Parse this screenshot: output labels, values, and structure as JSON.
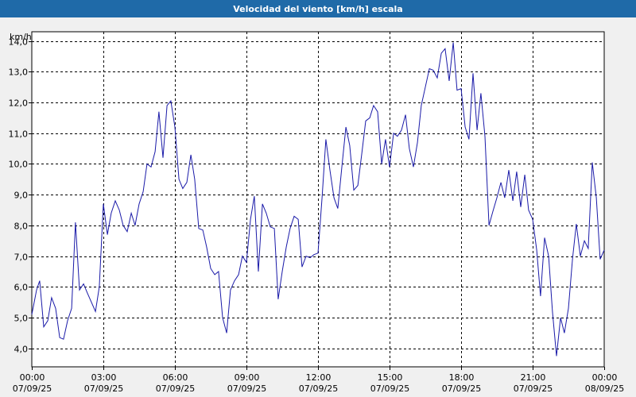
{
  "chart_data": {
    "type": "line",
    "title": "Velocidad del viento [km/h] escala",
    "ylabel": "km/h",
    "ylim": [
      3.4,
      14.3
    ],
    "yticks": [
      "4,0",
      "5,0",
      "6,0",
      "7,0",
      "8,0",
      "9,0",
      "10,0",
      "11,0",
      "12,0",
      "13,0",
      "14,0"
    ],
    "yticks_values": [
      4,
      5,
      6,
      7,
      8,
      9,
      10,
      11,
      12,
      13,
      14
    ],
    "xticks": [
      {
        "time": "00:00",
        "date": "07/09/25",
        "hour": 0
      },
      {
        "time": "03:00",
        "date": "07/09/25",
        "hour": 3
      },
      {
        "time": "06:00",
        "date": "07/09/25",
        "hour": 6
      },
      {
        "time": "09:00",
        "date": "07/09/25",
        "hour": 9
      },
      {
        "time": "12:00",
        "date": "07/09/25",
        "hour": 12
      },
      {
        "time": "15:00",
        "date": "07/09/25",
        "hour": 15
      },
      {
        "time": "18:00",
        "date": "07/09/25",
        "hour": 18
      },
      {
        "time": "21:00",
        "date": "07/09/25",
        "hour": 21
      },
      {
        "time": "00:00",
        "date": "08/09/25",
        "hour": 24
      }
    ],
    "xlim": [
      0,
      24
    ],
    "grid": true,
    "line_color": "#1a1aa8",
    "series": [
      {
        "name": "",
        "points": [
          [
            0.0,
            5.1
          ],
          [
            0.2,
            5.9
          ],
          [
            0.33,
            6.2
          ],
          [
            0.5,
            4.7
          ],
          [
            0.67,
            4.9
          ],
          [
            0.83,
            5.65
          ],
          [
            1.0,
            5.3
          ],
          [
            1.17,
            4.35
          ],
          [
            1.33,
            4.3
          ],
          [
            1.5,
            4.9
          ],
          [
            1.67,
            5.3
          ],
          [
            1.83,
            8.1
          ],
          [
            2.0,
            5.9
          ],
          [
            2.17,
            6.1
          ],
          [
            2.33,
            5.8
          ],
          [
            2.5,
            5.5
          ],
          [
            2.67,
            5.2
          ],
          [
            2.83,
            6.0
          ],
          [
            3.0,
            8.7
          ],
          [
            3.17,
            7.7
          ],
          [
            3.33,
            8.4
          ],
          [
            3.5,
            8.8
          ],
          [
            3.67,
            8.5
          ],
          [
            3.83,
            8.0
          ],
          [
            4.0,
            7.8
          ],
          [
            4.17,
            8.4
          ],
          [
            4.33,
            8.0
          ],
          [
            4.5,
            8.7
          ],
          [
            4.67,
            9.1
          ],
          [
            4.83,
            10.0
          ],
          [
            5.0,
            9.9
          ],
          [
            5.17,
            10.4
          ],
          [
            5.33,
            11.7
          ],
          [
            5.5,
            10.2
          ],
          [
            5.67,
            11.9
          ],
          [
            5.83,
            12.05
          ],
          [
            6.0,
            11.2
          ],
          [
            6.17,
            9.5
          ],
          [
            6.33,
            9.2
          ],
          [
            6.5,
            9.4
          ],
          [
            6.67,
            10.3
          ],
          [
            6.83,
            9.5
          ],
          [
            7.0,
            7.9
          ],
          [
            7.17,
            7.85
          ],
          [
            7.33,
            7.3
          ],
          [
            7.5,
            6.6
          ],
          [
            7.67,
            6.4
          ],
          [
            7.83,
            6.5
          ],
          [
            8.0,
            5.0
          ],
          [
            8.17,
            4.5
          ],
          [
            8.33,
            5.9
          ],
          [
            8.5,
            6.2
          ],
          [
            8.67,
            6.4
          ],
          [
            8.83,
            7.0
          ],
          [
            9.0,
            6.8
          ],
          [
            9.17,
            8.2
          ],
          [
            9.33,
            8.95
          ],
          [
            9.5,
            6.5
          ],
          [
            9.67,
            8.7
          ],
          [
            9.83,
            8.4
          ],
          [
            10.0,
            7.95
          ],
          [
            10.17,
            7.9
          ],
          [
            10.33,
            5.6
          ],
          [
            10.5,
            6.5
          ],
          [
            10.67,
            7.3
          ],
          [
            10.83,
            7.9
          ],
          [
            11.0,
            8.3
          ],
          [
            11.17,
            8.2
          ],
          [
            11.33,
            6.65
          ],
          [
            11.5,
            7.0
          ],
          [
            11.67,
            6.95
          ],
          [
            11.83,
            7.05
          ],
          [
            12.0,
            7.1
          ],
          [
            12.17,
            8.9
          ],
          [
            12.33,
            10.8
          ],
          [
            12.5,
            9.8
          ],
          [
            12.67,
            8.9
          ],
          [
            12.83,
            8.55
          ],
          [
            13.0,
            9.9
          ],
          [
            13.17,
            11.2
          ],
          [
            13.33,
            10.6
          ],
          [
            13.5,
            9.15
          ],
          [
            13.67,
            9.3
          ],
          [
            13.83,
            10.3
          ],
          [
            14.0,
            11.4
          ],
          [
            14.17,
            11.5
          ],
          [
            14.33,
            11.9
          ],
          [
            14.5,
            11.7
          ],
          [
            14.67,
            10.0
          ],
          [
            14.83,
            10.8
          ],
          [
            15.0,
            9.9
          ],
          [
            15.17,
            11.0
          ],
          [
            15.33,
            10.9
          ],
          [
            15.5,
            11.1
          ],
          [
            15.67,
            11.6
          ],
          [
            15.83,
            10.5
          ],
          [
            16.0,
            9.9
          ],
          [
            16.17,
            10.7
          ],
          [
            16.33,
            11.9
          ],
          [
            16.5,
            12.5
          ],
          [
            16.67,
            13.1
          ],
          [
            16.83,
            13.05
          ],
          [
            17.0,
            12.8
          ],
          [
            17.17,
            13.6
          ],
          [
            17.33,
            13.75
          ],
          [
            17.5,
            12.7
          ],
          [
            17.67,
            13.95
          ],
          [
            17.83,
            12.4
          ],
          [
            18.0,
            12.45
          ],
          [
            18.17,
            11.2
          ],
          [
            18.33,
            10.8
          ],
          [
            18.5,
            12.95
          ],
          [
            18.67,
            11.1
          ],
          [
            18.83,
            12.3
          ],
          [
            19.0,
            10.9
          ],
          [
            19.17,
            8.0
          ],
          [
            19.33,
            8.45
          ],
          [
            19.5,
            8.9
          ],
          [
            19.67,
            9.4
          ],
          [
            19.83,
            8.9
          ],
          [
            20.0,
            9.8
          ],
          [
            20.17,
            8.8
          ],
          [
            20.33,
            9.75
          ],
          [
            20.5,
            8.6
          ],
          [
            20.67,
            9.65
          ],
          [
            20.83,
            8.5
          ],
          [
            21.0,
            8.2
          ],
          [
            21.17,
            7.2
          ],
          [
            21.33,
            5.7
          ],
          [
            21.5,
            7.6
          ],
          [
            21.67,
            7.0
          ],
          [
            21.83,
            5.2
          ],
          [
            22.0,
            3.75
          ],
          [
            22.17,
            5.0
          ],
          [
            22.33,
            4.5
          ],
          [
            22.5,
            5.3
          ],
          [
            22.67,
            6.9
          ],
          [
            22.83,
            8.05
          ],
          [
            23.0,
            7.0
          ],
          [
            23.17,
            7.5
          ],
          [
            23.33,
            7.25
          ],
          [
            23.5,
            10.05
          ],
          [
            23.67,
            8.9
          ],
          [
            23.83,
            6.9
          ],
          [
            24.0,
            7.2
          ]
        ]
      }
    ]
  }
}
